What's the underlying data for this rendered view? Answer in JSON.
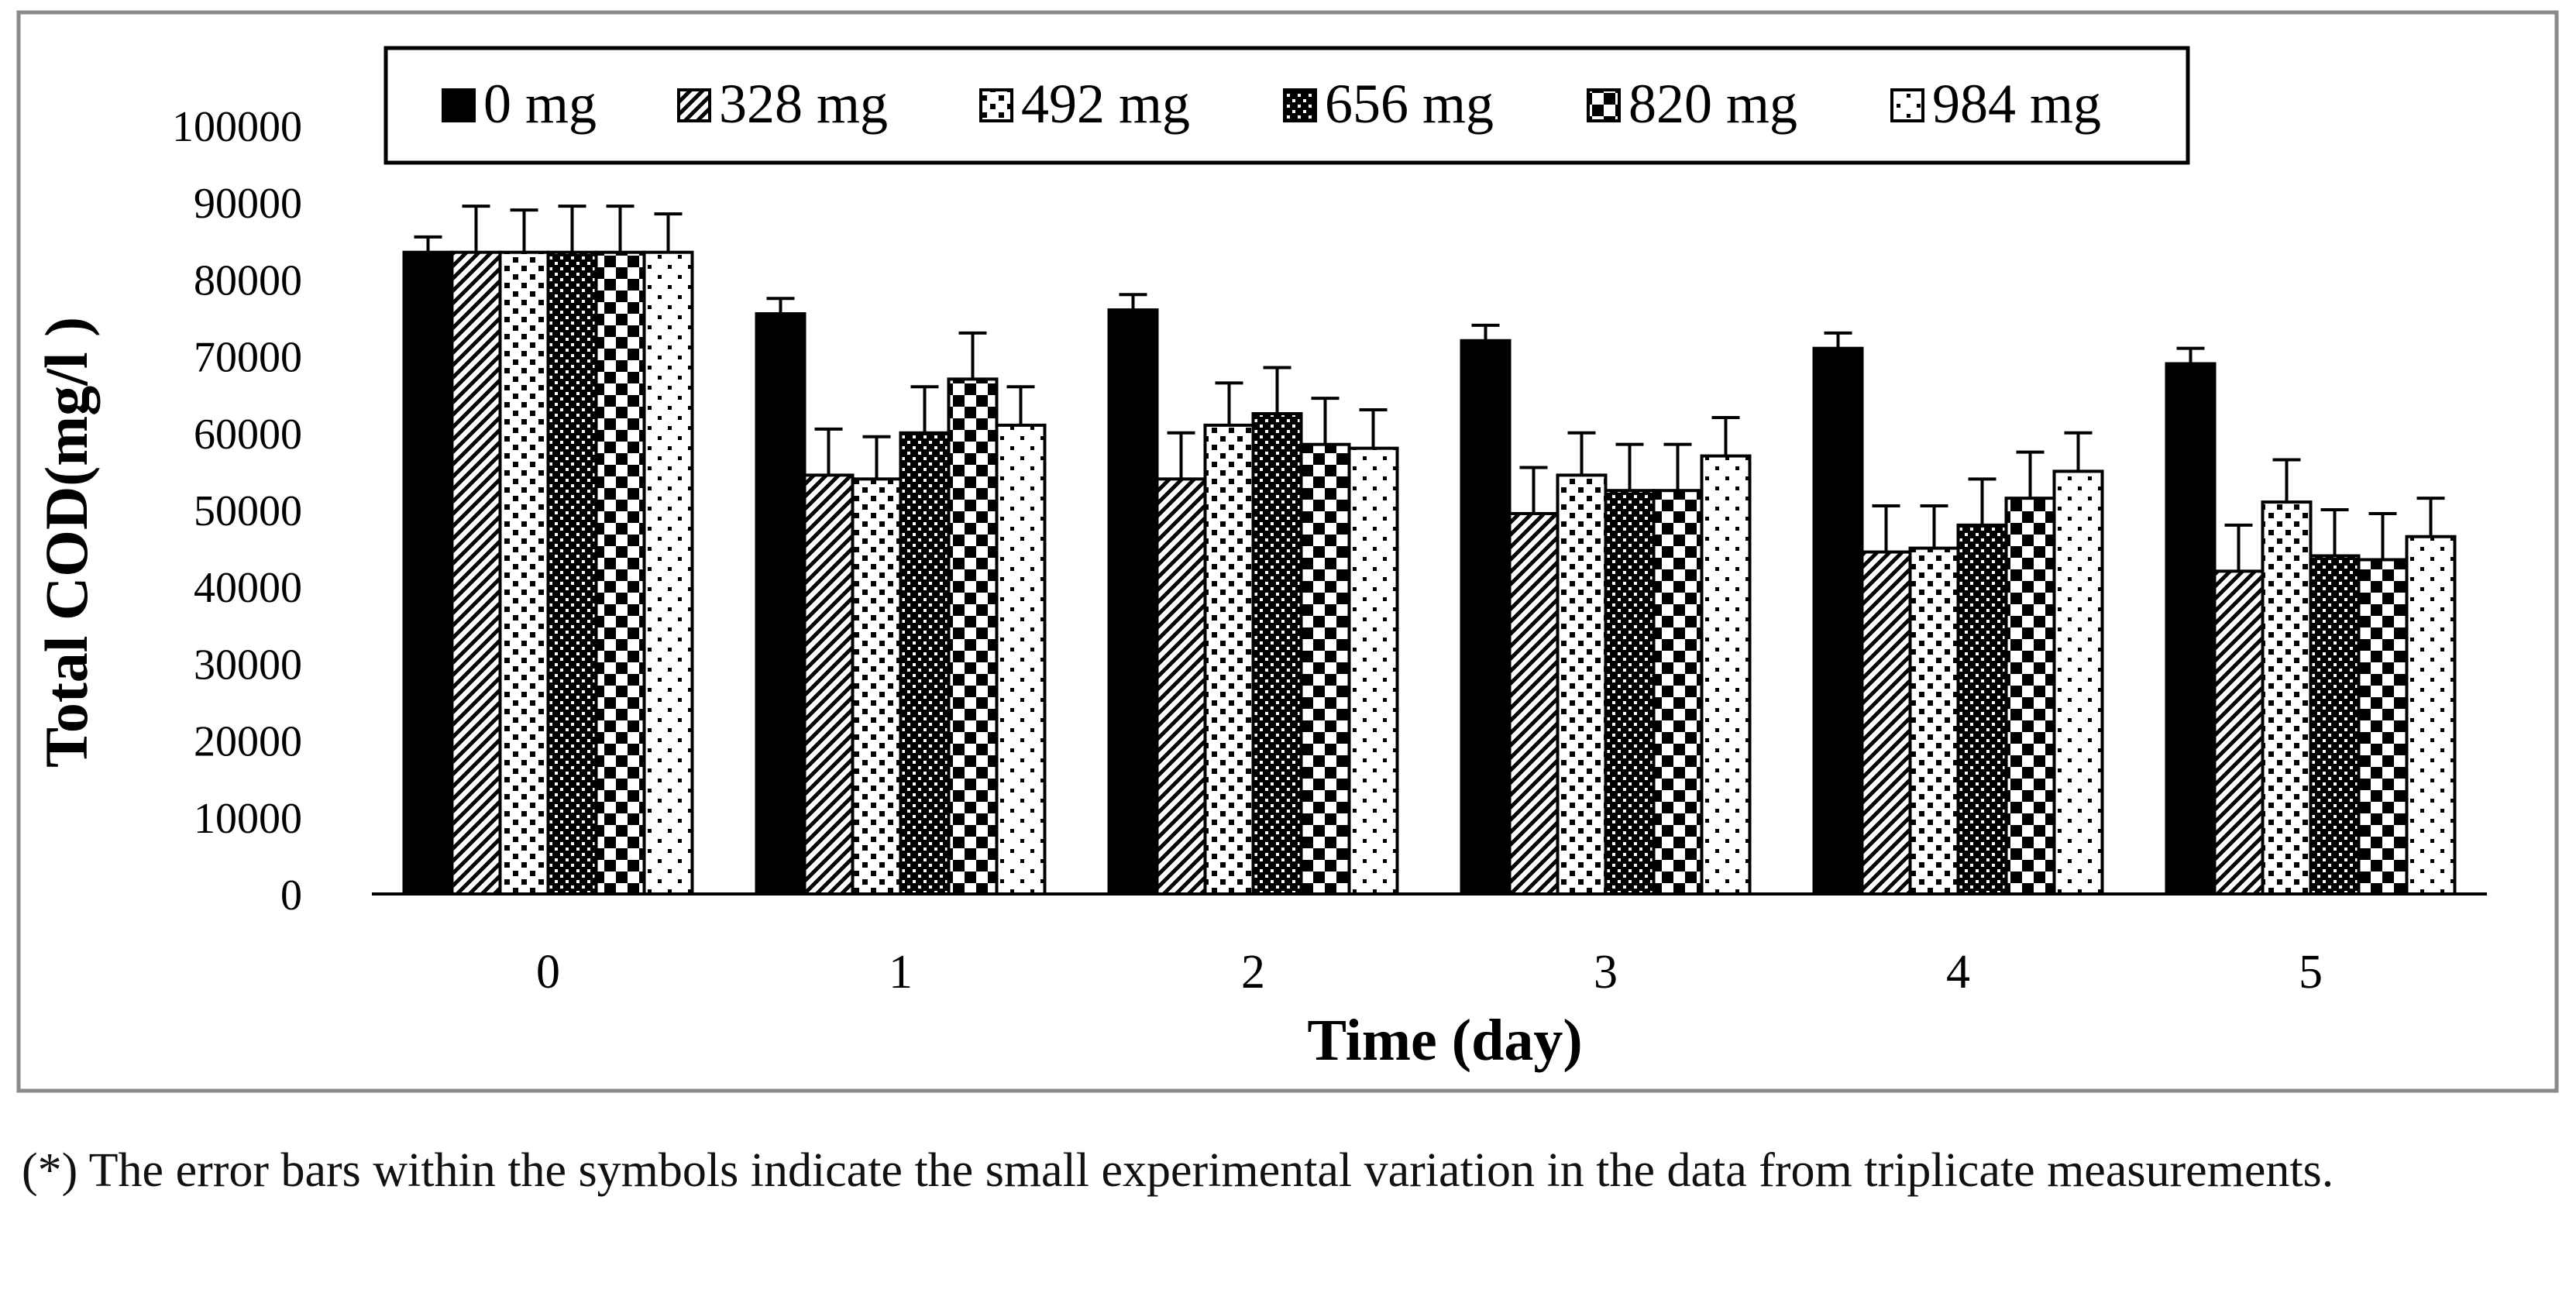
{
  "chart_data": {
    "type": "bar",
    "xlabel": "Time (day)",
    "ylabel": "Total COD(mg/l )",
    "ylim": [
      0,
      100000
    ],
    "yticks": [
      "0",
      "10000",
      "20000",
      "30000",
      "40000",
      "50000",
      "60000",
      "70000",
      "80000",
      "90000",
      "100000"
    ],
    "categories": [
      "0",
      "1",
      "2",
      "3",
      "4",
      "5"
    ],
    "legend_position": "top",
    "series": [
      {
        "name": "0 mg",
        "pattern": "solid",
        "values": [
          83500,
          75500,
          76000,
          72000,
          71000,
          69000
        ],
        "errors": [
          2000,
          2000,
          2000,
          2000,
          2000,
          2000
        ]
      },
      {
        "name": "328 mg",
        "pattern": "diagonal",
        "values": [
          83500,
          54500,
          54000,
          49500,
          44500,
          42000
        ],
        "errors": [
          6000,
          6000,
          6000,
          6000,
          6000,
          6000
        ]
      },
      {
        "name": "492 mg",
        "pattern": "dots",
        "values": [
          83500,
          54000,
          61000,
          54500,
          45000,
          51000
        ],
        "errors": [
          5500,
          5500,
          5500,
          5500,
          5500,
          5500
        ]
      },
      {
        "name": "656 mg",
        "pattern": "dense-dots",
        "values": [
          83500,
          60000,
          62500,
          52500,
          48000,
          44000
        ],
        "errors": [
          6000,
          6000,
          6000,
          6000,
          6000,
          6000
        ]
      },
      {
        "name": "820 mg",
        "pattern": "checker",
        "values": [
          83500,
          67000,
          58500,
          52500,
          51500,
          43500
        ],
        "errors": [
          6000,
          6000,
          6000,
          6000,
          6000,
          6000
        ]
      },
      {
        "name": "984 mg",
        "pattern": "sparse-dots",
        "values": [
          83500,
          61000,
          58000,
          57000,
          55000,
          46500
        ],
        "errors": [
          5000,
          5000,
          5000,
          5000,
          5000,
          5000
        ]
      }
    ]
  },
  "caption": "(*) The error bars within the symbols indicate the small experimental variation in the data from triplicate measurements."
}
